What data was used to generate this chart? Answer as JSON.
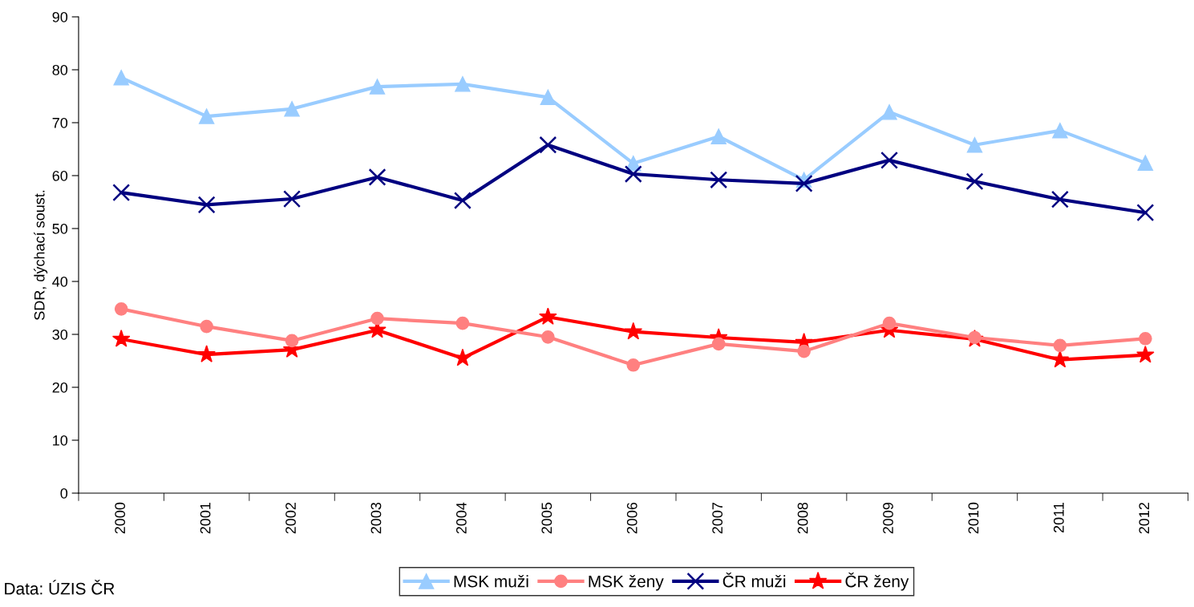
{
  "chart_data": {
    "type": "line",
    "ylabel": "SDR, dýchací soust.",
    "categories": [
      "2000",
      "2001",
      "2002",
      "2003",
      "2004",
      "2005",
      "2006",
      "2007",
      "2008",
      "2009",
      "2010",
      "2011",
      "2012"
    ],
    "series": [
      {
        "name": "MSK muži",
        "color": "#99ccff",
        "marker": "triangle",
        "values": [
          78.5,
          71.2,
          72.6,
          76.8,
          77.3,
          74.8,
          62.3,
          67.4,
          59.2,
          72.0,
          65.8,
          68.5,
          62.4
        ]
      },
      {
        "name": "MSK ženy",
        "color": "#ff8080",
        "marker": "circle",
        "values": [
          34.8,
          31.5,
          28.8,
          33.0,
          32.1,
          29.5,
          24.2,
          28.2,
          26.8,
          32.1,
          29.4,
          27.9,
          29.2
        ]
      },
      {
        "name": "ČR muži",
        "color": "#000080",
        "marker": "cross",
        "values": [
          56.8,
          54.5,
          55.6,
          59.7,
          55.3,
          65.8,
          60.3,
          59.2,
          58.5,
          62.9,
          58.9,
          55.5,
          53.0
        ]
      },
      {
        "name": "ČR ženy",
        "color": "#ff0000",
        "marker": "star",
        "values": [
          29.1,
          26.2,
          27.1,
          30.8,
          25.5,
          33.3,
          30.5,
          29.4,
          28.5,
          30.8,
          29.1,
          25.2,
          26.1
        ]
      }
    ],
    "ylim": [
      0,
      90
    ],
    "yticks": [
      0,
      10,
      20,
      30,
      40,
      50,
      60,
      70,
      80,
      90
    ],
    "grid": false,
    "legend": "bottom",
    "line_style": "solid",
    "annotations": [
      "Data: ÚZIS ČR"
    ]
  }
}
